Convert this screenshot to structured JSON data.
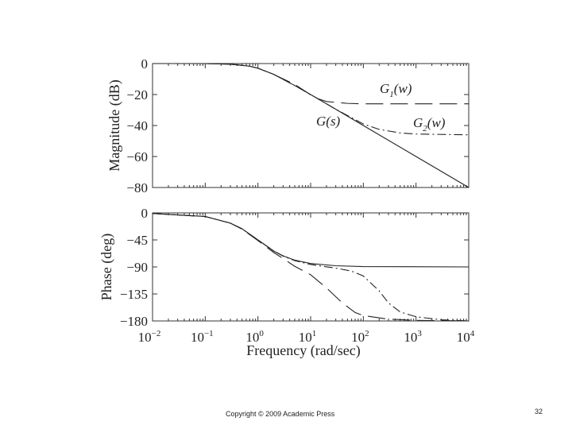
{
  "footer": {
    "copyright": "Copyright © 2009 Academic Press",
    "page_number": "32"
  },
  "chart_data": [
    {
      "type": "line",
      "xscale": "log",
      "xlim": [
        0.01,
        10000
      ],
      "ylim": [
        -80,
        0
      ],
      "ylabel": "Magnitude (dB)",
      "xlabel": "",
      "yticks": [
        "0",
        "−20",
        "−40",
        "−60",
        "−80"
      ],
      "ytick_values": [
        0,
        -20,
        -40,
        -60,
        -80
      ],
      "grid": false,
      "series": [
        {
          "name": "G(s)",
          "style": "solid",
          "x": [
            0.01,
            0.1,
            0.3,
            0.7,
            1,
            2,
            5,
            10,
            30,
            100,
            1000,
            10000
          ],
          "y": [
            0,
            0,
            -0.4,
            -1.7,
            -3,
            -7,
            -14.2,
            -20,
            -29.5,
            -40,
            -60,
            -80
          ]
        },
        {
          "name": "G1(w)",
          "style": "long-dash",
          "x": [
            0.01,
            0.1,
            0.3,
            0.7,
            1,
            2,
            5,
            8,
            12,
            20,
            50,
            100,
            1000,
            10000
          ],
          "y": [
            0,
            0,
            -0.4,
            -1.7,
            -3,
            -7,
            -13.5,
            -18,
            -22,
            -24.5,
            -25.7,
            -26,
            -26,
            -26
          ]
        },
        {
          "name": "G2(w)",
          "style": "dash-dot",
          "x": [
            0.01,
            0.1,
            0.3,
            0.7,
            1,
            2,
            5,
            10,
            30,
            100,
            200,
            500,
            1000,
            10000
          ],
          "y": [
            0,
            0,
            -0.4,
            -1.7,
            -3,
            -7,
            -14.2,
            -20,
            -29.5,
            -39,
            -42.5,
            -44.8,
            -45.5,
            -46
          ]
        }
      ],
      "annotations": [
        {
          "base": "G",
          "sub": "1",
          "arg": "(w)"
        },
        {
          "base": "G",
          "sub": "",
          "arg": "(s)"
        },
        {
          "base": "G",
          "sub": "2",
          "arg": "(w)"
        }
      ]
    },
    {
      "type": "line",
      "xscale": "log",
      "xlim": [
        0.01,
        10000
      ],
      "ylim": [
        -180,
        0
      ],
      "ylabel": "Phase (deg)",
      "xlabel": "Frequency (rad/sec)",
      "yticks": [
        "0",
        "−45",
        "−90",
        "−135",
        "−180"
      ],
      "ytick_values": [
        0,
        -45,
        -90,
        -135,
        -180
      ],
      "xticks": [
        {
          "base": "10",
          "exp": "−2",
          "value": 0.01
        },
        {
          "base": "10",
          "exp": "−1",
          "value": 0.1
        },
        {
          "base": "10",
          "exp": "0",
          "value": 1
        },
        {
          "base": "10",
          "exp": "1",
          "value": 10
        },
        {
          "base": "10",
          "exp": "2",
          "value": 100
        },
        {
          "base": "10",
          "exp": "3",
          "value": 1000
        },
        {
          "base": "10",
          "exp": "4",
          "value": 10000
        }
      ],
      "grid": false,
      "series": [
        {
          "name": "G(s)",
          "style": "solid",
          "x": [
            0.01,
            0.1,
            0.3,
            0.5,
            1,
            2,
            3,
            5,
            10,
            30,
            100,
            10000
          ],
          "y": [
            -1,
            -6,
            -17,
            -26.5,
            -45,
            -63.5,
            -71.5,
            -78.7,
            -84.3,
            -88,
            -89.4,
            -90
          ]
        },
        {
          "name": "G1(w)",
          "style": "long-dash",
          "x": [
            0.01,
            0.1,
            0.3,
            0.5,
            1,
            2,
            3,
            5,
            10,
            20,
            40,
            70,
            100,
            300,
            1000,
            10000
          ],
          "y": [
            -1,
            -6,
            -17,
            -27,
            -46,
            -66,
            -76,
            -89,
            -103,
            -125,
            -150,
            -166,
            -171,
            -177,
            -179,
            -180
          ]
        },
        {
          "name": "G2(w)",
          "style": "dash-dot",
          "x": [
            0.01,
            0.1,
            0.3,
            0.5,
            1,
            2,
            3,
            5,
            10,
            30,
            60,
            100,
            200,
            300,
            500,
            1000,
            3000,
            10000
          ],
          "y": [
            -1,
            -6,
            -17,
            -26.5,
            -45,
            -63.5,
            -72,
            -79.5,
            -86,
            -92,
            -97,
            -105,
            -130,
            -150,
            -165,
            -173,
            -178,
            -180
          ]
        }
      ]
    }
  ]
}
